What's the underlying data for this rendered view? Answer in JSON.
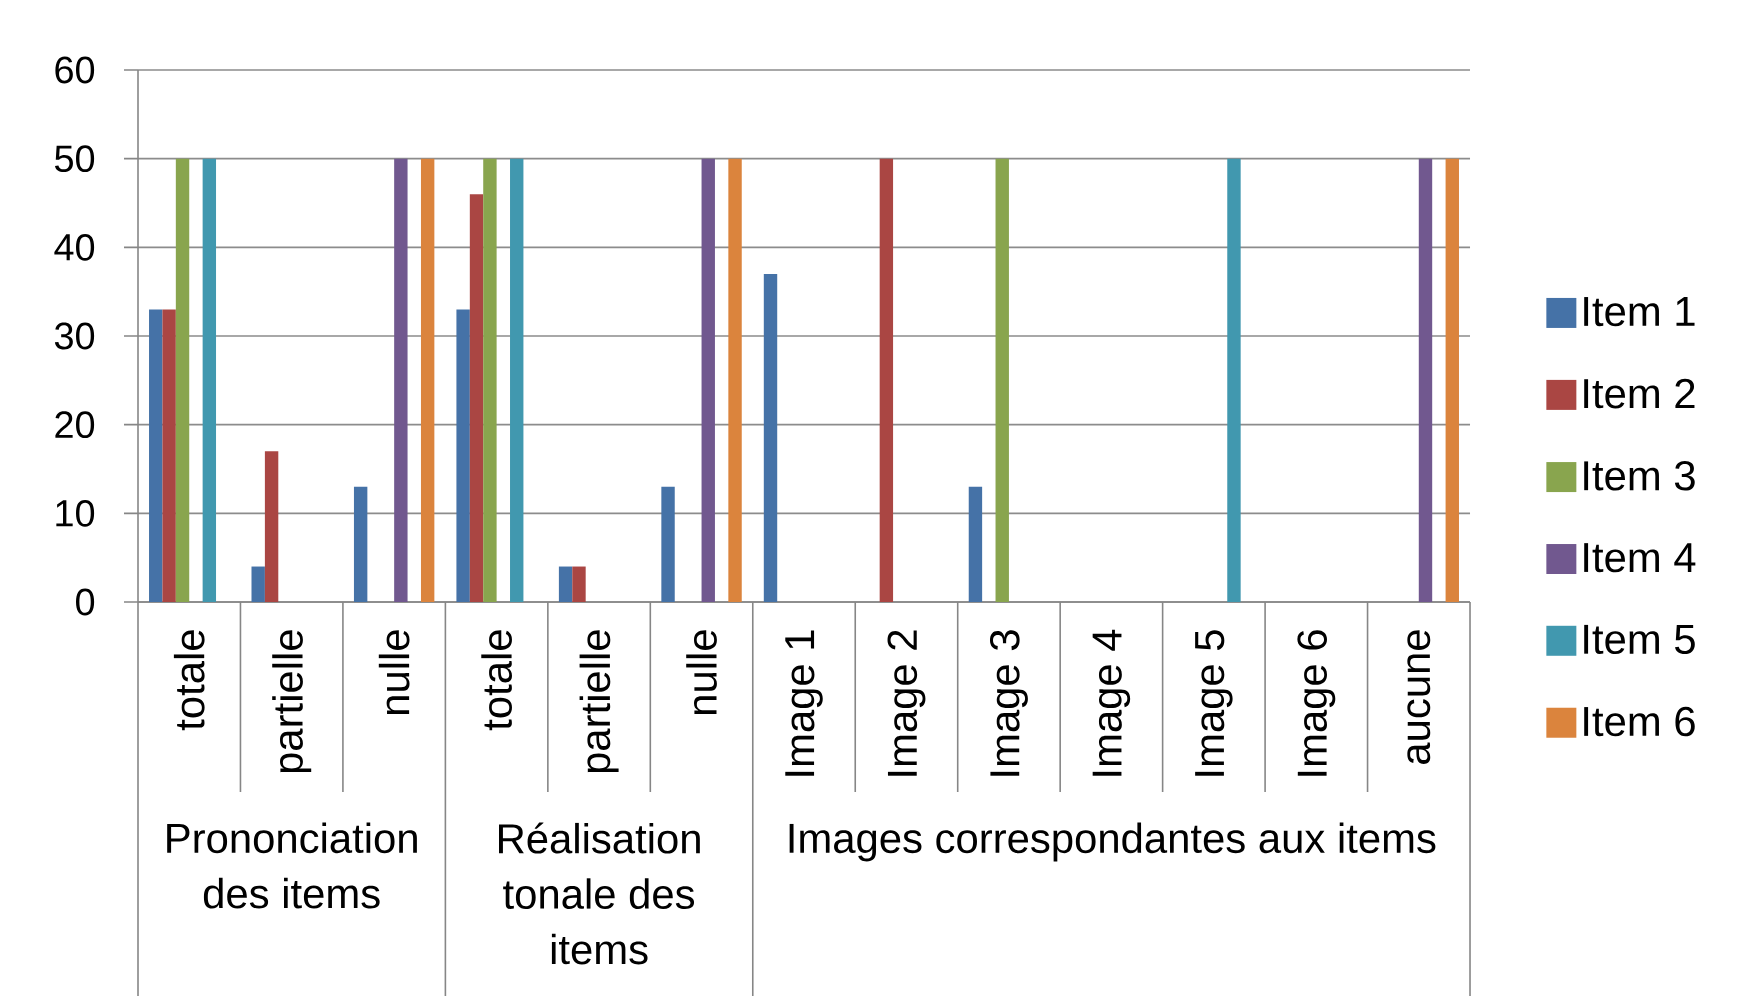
{
  "chart_data": {
    "type": "bar",
    "categories": [
      "totale",
      "partielle",
      "nulle",
      "totale",
      "partielle",
      "nulle",
      "Image 1",
      "Image 2",
      "Image 3",
      "Image 4",
      "Image 5",
      "Image 6",
      "aucune"
    ],
    "series": [
      {
        "name": "Item 1",
        "color": "#4572a7",
        "values": [
          33,
          4,
          13,
          33,
          4,
          13,
          37,
          0,
          13,
          0,
          0,
          0,
          0
        ]
      },
      {
        "name": "Item 2",
        "color": "#aa4643",
        "values": [
          33,
          17,
          0,
          46,
          4,
          0,
          0,
          50,
          0,
          0,
          0,
          0,
          0
        ]
      },
      {
        "name": "Item 3",
        "color": "#89a54e",
        "values": [
          50,
          0,
          0,
          50,
          0,
          0,
          0,
          0,
          50,
          0,
          0,
          0,
          0
        ]
      },
      {
        "name": "Item 4",
        "color": "#71588f",
        "values": [
          0,
          0,
          50,
          0,
          0,
          50,
          0,
          0,
          0,
          0,
          0,
          0,
          50
        ]
      },
      {
        "name": "Item 5",
        "color": "#4198af",
        "values": [
          50,
          0,
          0,
          50,
          0,
          0,
          0,
          0,
          0,
          0,
          50,
          0,
          0
        ]
      },
      {
        "name": "Item 6",
        "color": "#db843d",
        "values": [
          0,
          0,
          50,
          0,
          0,
          50,
          0,
          0,
          0,
          0,
          0,
          0,
          50
        ]
      }
    ],
    "ylim": [
      0,
      60
    ],
    "yticks": [
      0,
      10,
      20,
      30,
      40,
      50,
      60
    ],
    "grid": "y",
    "legend": "right",
    "annotations": [
      "Prononciation des items",
      "Réalisation tonale des items",
      "Images correspondantes aux items"
    ]
  }
}
